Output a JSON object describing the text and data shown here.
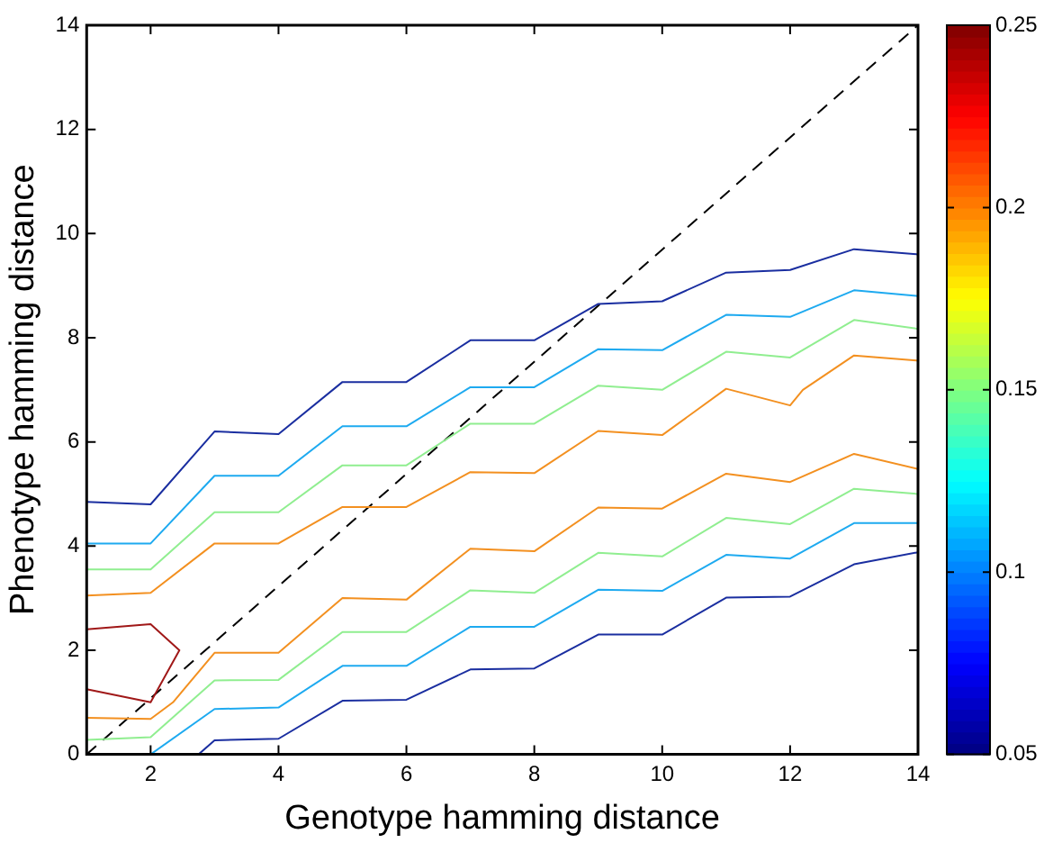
{
  "chart_data": {
    "type": "line",
    "xlabel": "Genotype hamming distance",
    "ylabel": "Phenotype hamming distance",
    "xlim": [
      1,
      14
    ],
    "ylim": [
      0,
      14
    ],
    "xticks": [
      2,
      4,
      6,
      8,
      10,
      12,
      14
    ],
    "yticks": [
      0,
      2,
      4,
      6,
      8,
      10,
      12,
      14
    ],
    "grid": false,
    "legend": false,
    "marker": "none",
    "clim": [
      0.05,
      0.25
    ],
    "cticks": [
      0.05,
      0.1,
      0.15,
      0.2,
      0.25
    ],
    "series": [
      {
        "color": "#1a2ea0",
        "x": [
          1,
          2,
          3,
          4,
          5,
          6,
          7,
          8,
          9,
          10,
          11,
          12,
          13,
          14
        ],
        "values": [
          4.85,
          4.8,
          6.2,
          6.15,
          7.15,
          7.15,
          7.95,
          7.95,
          8.65,
          8.7,
          9.25,
          9.3,
          9.7,
          9.6
        ]
      },
      {
        "color": "#1eaaf0",
        "x": [
          1,
          2,
          3,
          4,
          5,
          6,
          7,
          8,
          9,
          10,
          11,
          12,
          13,
          14
        ],
        "values": [
          4.05,
          4.05,
          5.35,
          5.35,
          6.3,
          6.3,
          7.05,
          7.05,
          7.78,
          7.76,
          8.44,
          8.4,
          8.91,
          8.8
        ]
      },
      {
        "color": "#90ee90",
        "x": [
          1,
          2,
          3,
          4,
          5,
          6,
          7,
          8,
          9,
          10,
          11,
          12,
          13,
          14
        ],
        "values": [
          3.55,
          3.55,
          4.65,
          4.65,
          5.55,
          5.55,
          6.35,
          6.35,
          7.08,
          7.0,
          7.73,
          7.62,
          8.34,
          8.17
        ]
      },
      {
        "color": "#f39020",
        "x": [
          1,
          2,
          3,
          4,
          5,
          6,
          7,
          8,
          9,
          10,
          11,
          12,
          12.2,
          13,
          14
        ],
        "values": [
          3.05,
          3.1,
          4.05,
          4.05,
          4.75,
          4.75,
          5.42,
          5.4,
          6.21,
          6.13,
          7.02,
          6.7,
          7.0,
          7.66,
          7.56
        ]
      },
      {
        "color": "#f39020",
        "x": [
          1,
          2,
          2.35,
          3,
          4,
          5,
          6,
          7,
          8,
          9,
          10,
          11,
          12,
          13,
          14
        ],
        "values": [
          0.7,
          0.68,
          1.0,
          1.95,
          1.95,
          3.0,
          2.97,
          3.95,
          3.9,
          4.74,
          4.72,
          5.39,
          5.23,
          5.77,
          5.48
        ]
      },
      {
        "color": "#90ee90",
        "x": [
          1,
          2,
          3,
          4,
          5,
          6,
          7,
          8,
          9,
          10,
          11,
          12,
          13,
          14
        ],
        "values": [
          0.28,
          0.33,
          1.42,
          1.43,
          2.35,
          2.35,
          3.15,
          3.1,
          3.87,
          3.8,
          4.54,
          4.42,
          5.1,
          5.0
        ]
      },
      {
        "color": "#1eaaf0",
        "x": [
          2,
          3,
          4,
          5,
          6,
          7,
          8,
          9,
          10,
          11,
          12,
          13,
          14
        ],
        "values": [
          0,
          0.87,
          0.9,
          1.7,
          1.7,
          2.45,
          2.45,
          3.16,
          3.14,
          3.83,
          3.76,
          4.44,
          4.44
        ]
      },
      {
        "color": "#1a2ea0",
        "x": [
          2.75,
          3,
          4,
          5,
          6,
          7,
          8,
          9,
          10,
          11,
          12,
          13,
          14
        ],
        "values": [
          0,
          0.27,
          0.3,
          1.03,
          1.05,
          1.63,
          1.65,
          2.3,
          2.3,
          3.01,
          3.03,
          3.65,
          3.88
        ]
      },
      {
        "color": "#a01818",
        "x": [
          1,
          2,
          2.45,
          2,
          1
        ],
        "values": [
          2.4,
          2.5,
          2.0,
          1.0,
          1.25
        ]
      },
      {
        "color": "#000000",
        "line_style": "dashed",
        "x": [
          1,
          14
        ],
        "values": [
          0,
          14
        ]
      }
    ]
  }
}
